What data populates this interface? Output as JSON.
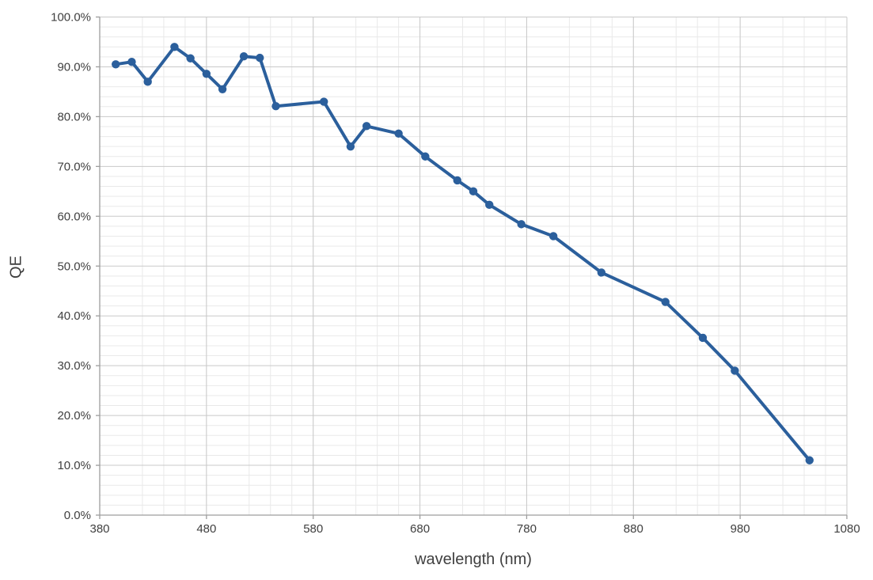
{
  "chart_data": {
    "type": "line",
    "xlabel": "wavelength (nm)",
    "ylabel": "QE",
    "xlim": [
      380,
      1080
    ],
    "ylim": [
      0,
      100
    ],
    "grid": {
      "x_major_step": 100,
      "x_minor_step": 20,
      "y_major_step": 10,
      "y_minor_step": 2,
      "major_color": "#c9c9c9",
      "minor_color": "#e9e9e9",
      "axis_color": "#9d9d9d"
    },
    "x_ticks": {
      "values": [
        380,
        480,
        580,
        680,
        780,
        880,
        980,
        1080
      ],
      "labels": [
        "380",
        "480",
        "580",
        "680",
        "780",
        "880",
        "980",
        "1080"
      ]
    },
    "y_ticks": {
      "values": [
        0,
        10,
        20,
        30,
        40,
        50,
        60,
        70,
        80,
        90,
        100
      ],
      "labels": [
        "0.0%",
        "10.0%",
        "20.0%",
        "30.0%",
        "40.0%",
        "50.0%",
        "60.0%",
        "70.0%",
        "80.0%",
        "90.0%",
        "100.0%"
      ]
    },
    "legend": "none",
    "series": [
      {
        "name": "QE",
        "color": "#2b5f9c",
        "marker": "circle",
        "points": [
          [
            395,
            90.5
          ],
          [
            410,
            91.0
          ],
          [
            425,
            87.0
          ],
          [
            450,
            94.0
          ],
          [
            465,
            91.7
          ],
          [
            480,
            88.6
          ],
          [
            495,
            85.5
          ],
          [
            515,
            92.1
          ],
          [
            530,
            91.8
          ],
          [
            545,
            82.1
          ],
          [
            590,
            83.0
          ],
          [
            615,
            74.0
          ],
          [
            630,
            78.1
          ],
          [
            660,
            76.6
          ],
          [
            685,
            72.0
          ],
          [
            715,
            67.2
          ],
          [
            730,
            65.0
          ],
          [
            745,
            62.3
          ],
          [
            775,
            58.4
          ],
          [
            805,
            56.0
          ],
          [
            850,
            48.7
          ],
          [
            910,
            42.8
          ],
          [
            945,
            35.6
          ],
          [
            975,
            29.0
          ],
          [
            1045,
            11.0
          ]
        ]
      }
    ]
  }
}
